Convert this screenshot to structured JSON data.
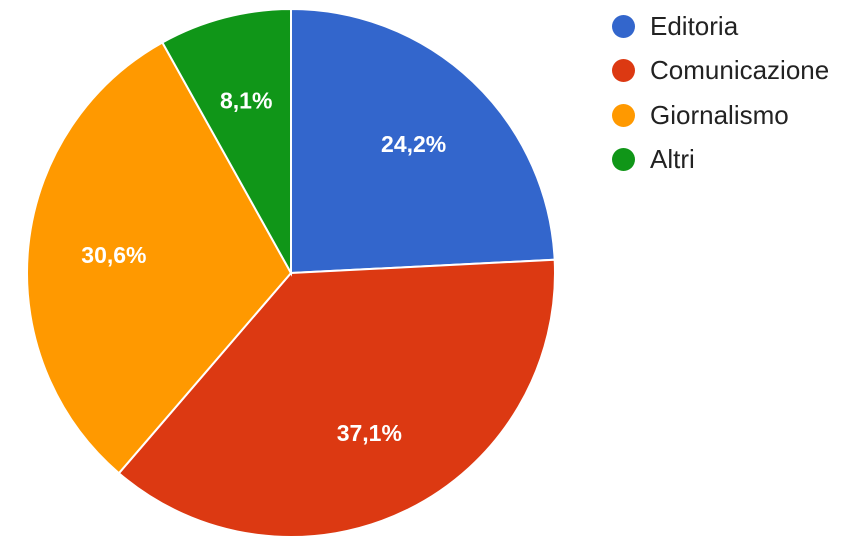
{
  "chart_data": {
    "type": "pie",
    "categories": [
      "Editoria",
      "Comunicazione",
      "Giornalismo",
      "Altri"
    ],
    "values": [
      24.2,
      37.1,
      30.6,
      8.1
    ],
    "labels": [
      "24,2%",
      "37,1%",
      "30,6%",
      "8,1%"
    ],
    "colors": [
      "#3366cc",
      "#dc3912",
      "#ff9900",
      "#109618"
    ],
    "legend_position": "right",
    "start_angle_deg": 0,
    "direction": "clockwise"
  }
}
